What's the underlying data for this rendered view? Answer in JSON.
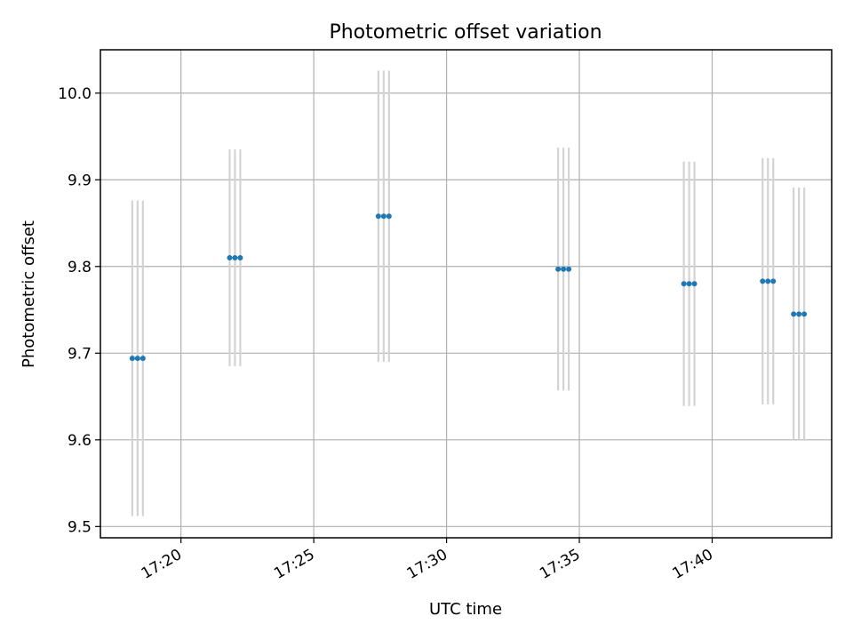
{
  "chart_data": {
    "type": "scatter",
    "title": "Photometric offset variation",
    "xlabel": "UTC time",
    "ylabel": "Photometric offset",
    "x_ticks": [
      "17:20",
      "17:25",
      "17:30",
      "17:35",
      "17:40"
    ],
    "y_ticks": [
      "9.5",
      "9.6",
      "9.7",
      "9.8",
      "9.9",
      "10.0"
    ],
    "xlim": [
      "17:16:58",
      "17:44:30"
    ],
    "ylim": [
      9.487,
      10.05
    ],
    "grid": true,
    "series": [
      {
        "color": "#1f77b4",
        "errorbar_color": "#d3d3d3",
        "points": [
          {
            "times": [
              "17:18:10",
              "17:18:22",
              "17:18:34"
            ],
            "y": 9.694,
            "err": 0.182
          },
          {
            "times": [
              "17:21:50",
              "17:22:02",
              "17:22:14"
            ],
            "y": 9.81,
            "err": 0.125
          },
          {
            "times": [
              "17:27:26",
              "17:27:38",
              "17:27:50"
            ],
            "y": 9.858,
            "err": 0.168
          },
          {
            "times": [
              "17:34:12",
              "17:34:24",
              "17:34:36"
            ],
            "y": 9.797,
            "err": 0.14
          },
          {
            "times": [
              "17:38:56",
              "17:39:08",
              "17:39:20"
            ],
            "y": 9.78,
            "err": 0.141
          },
          {
            "times": [
              "17:41:54",
              "17:42:06",
              "17:42:18"
            ],
            "y": 9.783,
            "err": 0.142
          },
          {
            "times": [
              "17:43:04",
              "17:43:16",
              "17:43:28"
            ],
            "y": 9.745,
            "err": 0.146
          }
        ]
      }
    ]
  }
}
